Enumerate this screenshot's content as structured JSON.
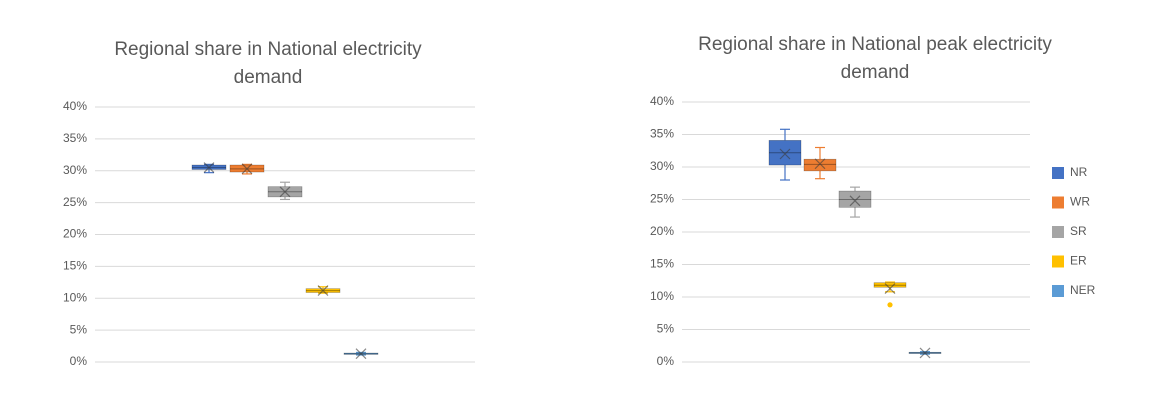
{
  "chart_data": [
    {
      "type": "box",
      "title": "Regional share in National electricity demand",
      "ylim": [
        0,
        40
      ],
      "yticks": [
        {
          "value": 0,
          "label": "0%"
        },
        {
          "value": 5,
          "label": "5%"
        },
        {
          "value": 10,
          "label": "10%"
        },
        {
          "value": 15,
          "label": "15%"
        },
        {
          "value": 20,
          "label": "20%"
        },
        {
          "value": 25,
          "label": "25%"
        },
        {
          "value": 30,
          "label": "30%"
        },
        {
          "value": 35,
          "label": "35%"
        },
        {
          "value": 40,
          "label": "40%"
        }
      ],
      "grid": true,
      "series": [
        {
          "color": "#4472c4",
          "min": 29.7,
          "q1": 30.2,
          "median": 30.5,
          "q3": 30.9,
          "max": 31.0,
          "mean": 30.5
        },
        {
          "color": "#ed7d31",
          "min": 29.5,
          "q1": 29.8,
          "median": 30.3,
          "q3": 30.9,
          "max": 31.0,
          "mean": 30.3
        },
        {
          "color": "#a5a5a5",
          "min": 25.5,
          "q1": 25.9,
          "median": 26.7,
          "q3": 27.5,
          "max": 28.2,
          "mean": 26.7
        },
        {
          "color": "#ffc000",
          "min": 10.8,
          "q1": 10.9,
          "median": 11.2,
          "q3": 11.5,
          "max": 11.8,
          "mean": 11.2
        },
        {
          "color": "#5b9bd5",
          "min": 1.1,
          "q1": 1.2,
          "median": 1.3,
          "q3": 1.4,
          "max": 1.5,
          "mean": 1.3
        }
      ]
    },
    {
      "type": "box",
      "title": "Regional share in National peak electricity demand",
      "ylim": [
        0,
        40
      ],
      "yticks": [
        {
          "value": 0,
          "label": "0%"
        },
        {
          "value": 5,
          "label": "5%"
        },
        {
          "value": 10,
          "label": "10%"
        },
        {
          "value": 15,
          "label": "15%"
        },
        {
          "value": 20,
          "label": "20%"
        },
        {
          "value": 25,
          "label": "25%"
        },
        {
          "value": 30,
          "label": "30%"
        },
        {
          "value": 35,
          "label": "35%"
        },
        {
          "value": 40,
          "label": "40%"
        }
      ],
      "grid": true,
      "legend": "right",
      "series": [
        {
          "name": "NR",
          "color": "#4472c4",
          "min": 28.0,
          "q1": 30.3,
          "median": 32.2,
          "q3": 34.1,
          "max": 35.8,
          "mean": 32.0
        },
        {
          "name": "WR",
          "color": "#ed7d31",
          "min": 28.2,
          "q1": 29.4,
          "median": 30.4,
          "q3": 31.2,
          "max": 33.0,
          "mean": 30.5
        },
        {
          "name": "SR",
          "color": "#a5a5a5",
          "min": 22.3,
          "q1": 23.8,
          "median": 25.0,
          "q3": 26.3,
          "max": 26.9,
          "mean": 24.8
        },
        {
          "name": "ER",
          "color": "#ffc000",
          "min": 10.8,
          "q1": 11.5,
          "median": 11.8,
          "q3": 12.2,
          "max": 12.3,
          "mean": 11.3,
          "outliers": [
            8.8
          ]
        },
        {
          "name": "NER",
          "color": "#5b9bd5",
          "min": 1.2,
          "q1": 1.3,
          "median": 1.4,
          "q3": 1.5,
          "max": 1.6,
          "mean": 1.4
        }
      ]
    }
  ]
}
